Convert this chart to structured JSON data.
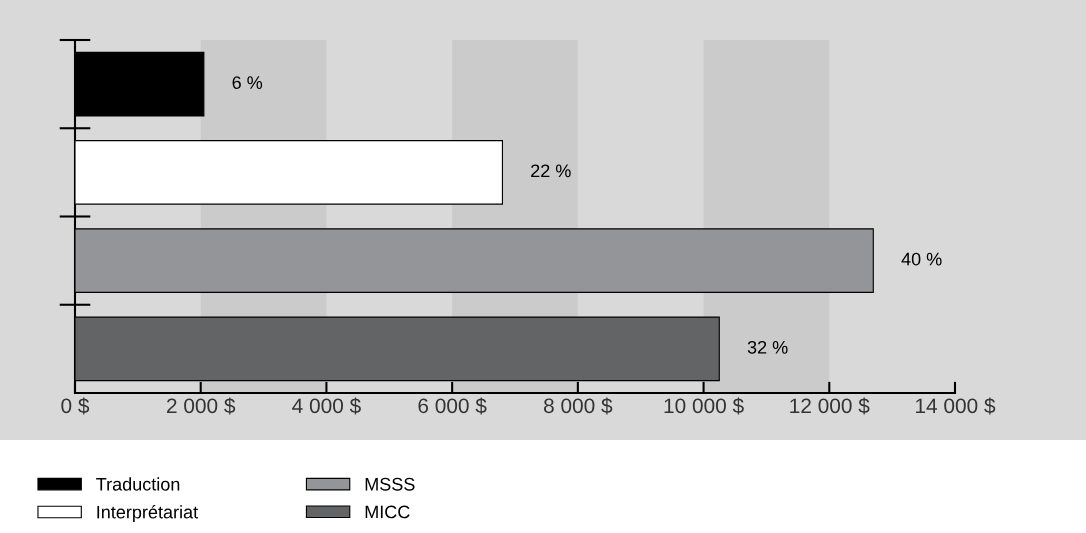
{
  "chart_data": {
    "type": "bar",
    "orientation": "horizontal",
    "categories": [
      null,
      null,
      null,
      null
    ],
    "series": [
      {
        "name": "Traduction",
        "color": "#000000",
        "values": [
          2050,
          null,
          null,
          null
        ]
      },
      {
        "name": "Interprétariat",
        "color": "#ffffff",
        "values": [
          null,
          6800,
          null,
          null
        ]
      },
      {
        "name": "MSSS",
        "color": "#939598",
        "values": [
          null,
          null,
          12700,
          null
        ]
      },
      {
        "name": "MICC",
        "color": "#636466",
        "values": [
          null,
          null,
          null,
          10250
        ]
      }
    ],
    "value_labels": [
      "6 %",
      "22 %",
      "40 %",
      "32 %"
    ],
    "xlim": [
      0,
      14000
    ],
    "xticks": [
      {
        "value": 0,
        "label": "0 $"
      },
      {
        "value": 2000,
        "label": "2 000 $"
      },
      {
        "value": 4000,
        "label": "4 000 $"
      },
      {
        "value": 6000,
        "label": "6 000 $"
      },
      {
        "value": 8000,
        "label": "8 000 $"
      },
      {
        "value": 10000,
        "label": "10 000 $"
      },
      {
        "value": 12000,
        "label": "12 000 $"
      },
      {
        "value": 14000,
        "label": "14 000 $"
      }
    ],
    "bands": [
      {
        "axis": "x",
        "from": 2000,
        "to": 4000,
        "color": "#cbcbcb"
      },
      {
        "axis": "x",
        "from": 6000,
        "to": 8000,
        "color": "#cbcbcb"
      },
      {
        "axis": "x",
        "from": 10000,
        "to": 12000,
        "color": "#cbcbcb"
      }
    ],
    "grid": false,
    "legend": "bottom left"
  }
}
